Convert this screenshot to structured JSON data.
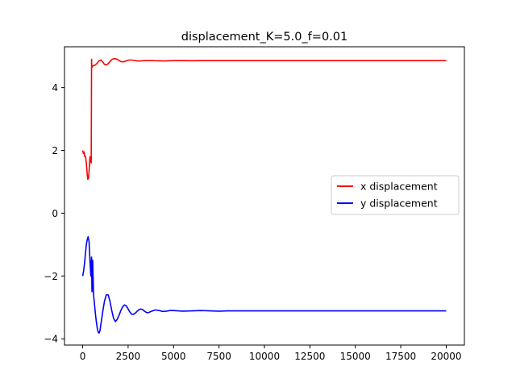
{
  "chart_data": {
    "type": "line",
    "title": "displacement_K=5.0_f=0.01",
    "xlabel": "",
    "ylabel": "",
    "xlim": [
      -1000,
      21000
    ],
    "ylim": [
      -4.2,
      5.3
    ],
    "xticks": [
      0,
      2500,
      5000,
      7500,
      10000,
      12500,
      15000,
      17500,
      20000
    ],
    "xtick_labels": [
      "0",
      "2500",
      "5000",
      "7500",
      "10000",
      "12500",
      "15000",
      "17500",
      "20000"
    ],
    "yticks": [
      -4,
      -2,
      0,
      2,
      4
    ],
    "ytick_labels": [
      "−4",
      "−2",
      "0",
      "2",
      "4"
    ],
    "grid": false,
    "legend_position": "center-right",
    "series": [
      {
        "name": "x displacement",
        "color": "#ff0000",
        "x": [
          0,
          40,
          80,
          120,
          160,
          200,
          240,
          280,
          320,
          360,
          400,
          440,
          470,
          490,
          500,
          520,
          540,
          600,
          700,
          800,
          900,
          1000,
          1100,
          1200,
          1300,
          1400,
          1500,
          1600,
          1700,
          1800,
          1900,
          2000,
          2100,
          2200,
          2300,
          2400,
          2500,
          2600,
          2800,
          3000,
          3200,
          3400,
          3600,
          3800,
          4000,
          4500,
          5000,
          5500,
          6000,
          6500,
          7000,
          8000,
          9000,
          10000,
          12000,
          14000,
          16000,
          18000,
          20000
        ],
        "y": [
          2.0,
          1.9,
          1.95,
          1.8,
          1.8,
          1.6,
          1.3,
          1.08,
          1.1,
          1.4,
          1.8,
          1.7,
          1.6,
          4.9,
          4.7,
          4.65,
          4.68,
          4.7,
          4.72,
          4.78,
          4.85,
          4.88,
          4.82,
          4.74,
          4.72,
          4.76,
          4.83,
          4.89,
          4.92,
          4.92,
          4.9,
          4.86,
          4.83,
          4.82,
          4.83,
          4.85,
          4.87,
          4.88,
          4.87,
          4.85,
          4.85,
          4.86,
          4.86,
          4.86,
          4.855,
          4.85,
          4.86,
          4.86,
          4.855,
          4.86,
          4.86,
          4.86,
          4.86,
          4.86,
          4.86,
          4.86,
          4.86,
          4.86,
          4.86
        ]
      },
      {
        "name": "y displacement",
        "color": "#0000ff",
        "x": [
          0,
          50,
          100,
          150,
          200,
          250,
          300,
          350,
          400,
          450,
          470,
          490,
          510,
          530,
          550,
          600,
          650,
          700,
          750,
          800,
          850,
          900,
          950,
          1000,
          1100,
          1200,
          1300,
          1400,
          1500,
          1600,
          1700,
          1800,
          1900,
          2000,
          2100,
          2200,
          2300,
          2400,
          2500,
          2600,
          2700,
          2800,
          2900,
          3000,
          3100,
          3200,
          3300,
          3400,
          3500,
          3600,
          3800,
          4000,
          4200,
          4400,
          4600,
          4800,
          5000,
          5500,
          6000,
          6500,
          7000,
          7500,
          8000,
          9000,
          10000,
          12000,
          14000,
          16000,
          18000,
          20000
        ],
        "y": [
          -2.0,
          -1.85,
          -1.6,
          -1.3,
          -1.0,
          -0.85,
          -0.75,
          -0.9,
          -1.5,
          -2.0,
          -1.6,
          -1.4,
          -2.5,
          -2.3,
          -1.5,
          -2.6,
          -2.9,
          -3.2,
          -3.45,
          -3.65,
          -3.78,
          -3.82,
          -3.75,
          -3.55,
          -3.15,
          -2.8,
          -2.6,
          -2.6,
          -2.8,
          -3.1,
          -3.35,
          -3.45,
          -3.38,
          -3.25,
          -3.1,
          -2.98,
          -2.92,
          -2.95,
          -3.05,
          -3.15,
          -3.22,
          -3.22,
          -3.18,
          -3.12,
          -3.07,
          -3.05,
          -3.07,
          -3.12,
          -3.16,
          -3.17,
          -3.12,
          -3.08,
          -3.1,
          -3.13,
          -3.12,
          -3.1,
          -3.1,
          -3.12,
          -3.11,
          -3.1,
          -3.11,
          -3.12,
          -3.11,
          -3.11,
          -3.11,
          -3.11,
          -3.11,
          -3.11,
          -3.11,
          -3.11
        ]
      }
    ]
  }
}
